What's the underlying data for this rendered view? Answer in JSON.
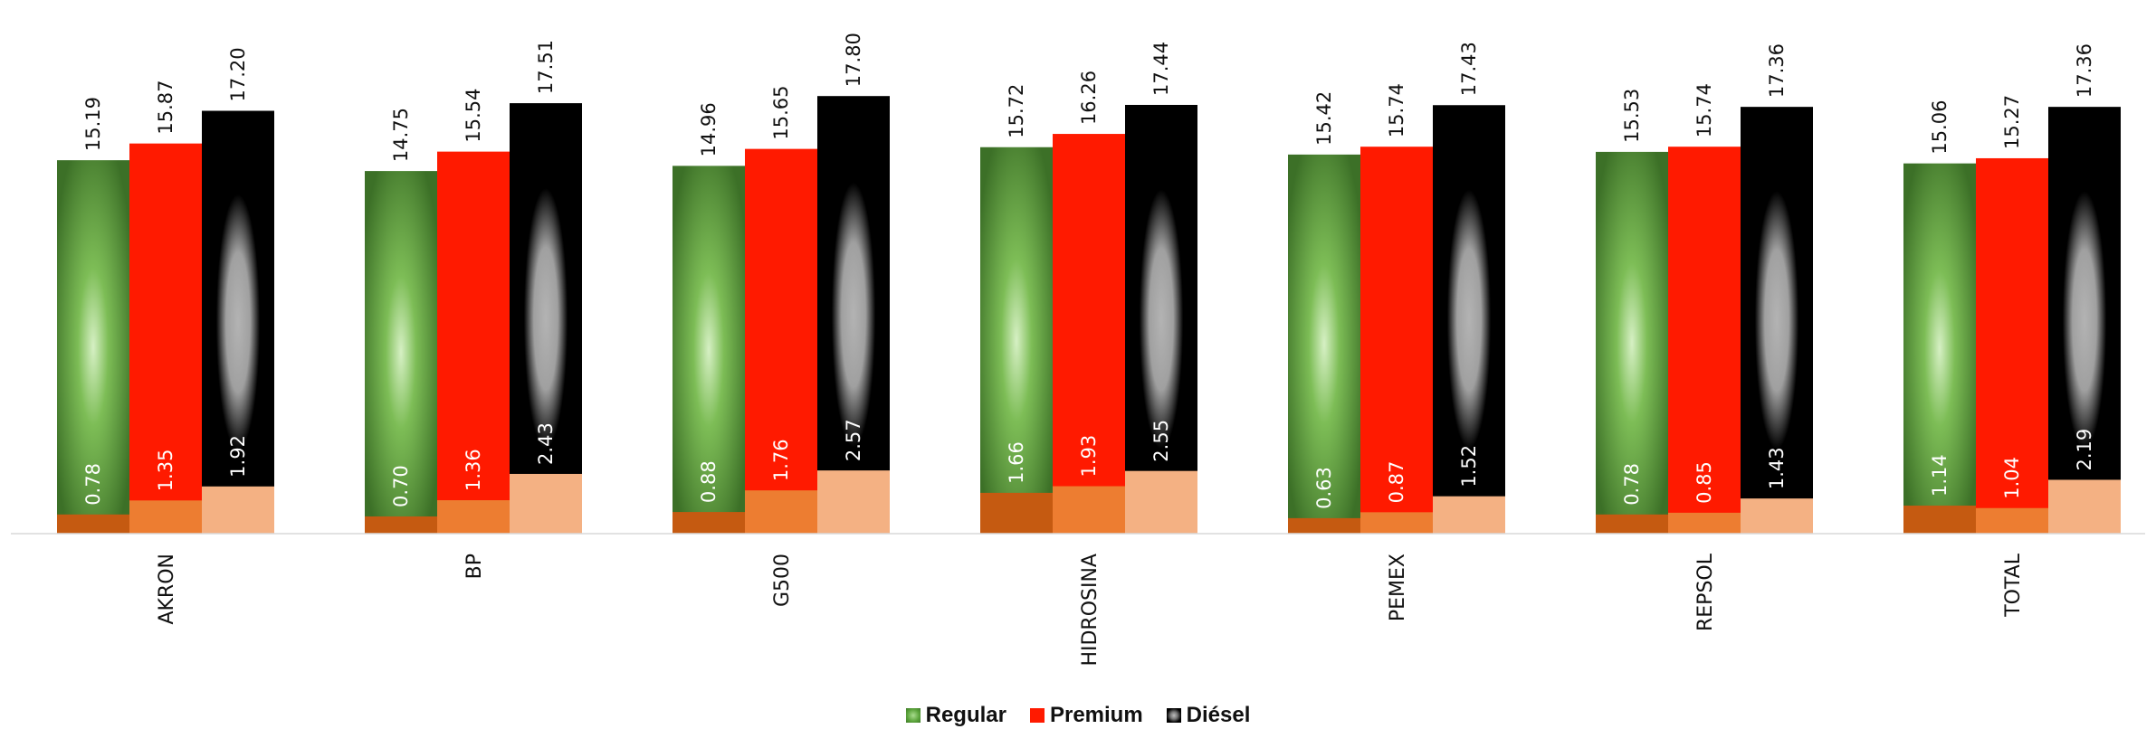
{
  "chart_data": {
    "type": "bar",
    "categories": [
      "AKRON",
      "BP",
      "G500",
      "HIDROSINA",
      "PEMEX",
      "REPSOL",
      "TOTAL"
    ],
    "series": [
      {
        "name": "Regular",
        "values": [
          15.19,
          14.75,
          14.96,
          15.72,
          15.42,
          15.53,
          15.06
        ],
        "labels": [
          "15.19",
          "14.75",
          "14.96",
          "15.72",
          "15.42",
          "15.53",
          "15.06"
        ],
        "secondary_values": [
          0.78,
          0.7,
          0.88,
          1.66,
          0.63,
          0.78,
          1.14
        ],
        "secondary_labels": [
          "0.78",
          "0.70",
          "0.88",
          "1.66",
          "0.63",
          "0.78",
          "1.14"
        ],
        "color": "#5aa33a",
        "secondary_color": "#c55a11"
      },
      {
        "name": "Premium",
        "values": [
          15.87,
          15.54,
          15.65,
          16.26,
          15.74,
          15.74,
          15.27
        ],
        "labels": [
          "15.87",
          "15.54",
          "15.65",
          "16.26",
          "15.74",
          "15.74",
          "15.27"
        ],
        "secondary_values": [
          1.35,
          1.36,
          1.76,
          1.93,
          0.87,
          0.85,
          1.04
        ],
        "secondary_labels": [
          "1.35",
          "1.36",
          "1.76",
          "1.93",
          "0.87",
          "0.85",
          "1.04"
        ],
        "color": "#ff1a00",
        "secondary_color": "#ed7d31"
      },
      {
        "name": "Diésel",
        "values": [
          17.2,
          17.51,
          17.8,
          17.44,
          17.43,
          17.36,
          17.36
        ],
        "labels": [
          "17.20",
          "17.51",
          "17.80",
          "17.44",
          "17.43",
          "17.36",
          "17.36"
        ],
        "secondary_values": [
          1.92,
          2.43,
          2.57,
          2.55,
          1.52,
          1.43,
          2.19
        ],
        "secondary_labels": [
          "1.92",
          "2.43",
          "2.57",
          "2.55",
          "1.52",
          "1.43",
          "2.19"
        ],
        "color": "#000000",
        "secondary_color": "#f4b183"
      }
    ],
    "ylim": [
      0,
      18
    ],
    "legend_position": "bottom-center",
    "grid": false
  },
  "legend": {
    "regular": "Regular",
    "premium": "Premium",
    "diesel": "Diésel"
  }
}
